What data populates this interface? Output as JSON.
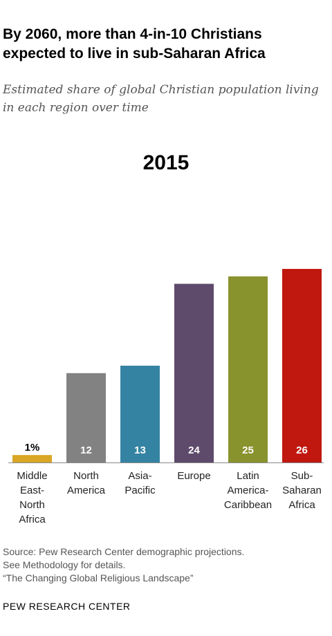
{
  "header": {
    "title": "By 2060, more than 4-in-10 Christians expected to live in sub-Saharan Africa",
    "subtitle": "Estimated share of global Christian population living in each region over time"
  },
  "chart_data": {
    "type": "bar",
    "title": "2015",
    "categories": [
      [
        "Middle",
        "East-",
        "North",
        "Africa"
      ],
      [
        "North",
        "America"
      ],
      [
        "Asia-",
        "Pacific"
      ],
      [
        "Europe"
      ],
      [
        "Latin",
        "America-",
        "Caribbean"
      ],
      [
        "Sub-",
        "Saharan",
        "Africa"
      ]
    ],
    "values": [
      1,
      12,
      13,
      24,
      25,
      26
    ],
    "value_labels": [
      "1%",
      "12",
      "13",
      "24",
      "25",
      "26"
    ],
    "colors": [
      "#D9A626",
      "#828282",
      "#3583A3",
      "#5E4A6B",
      "#88932E",
      "#C0180F"
    ],
    "ylim": [
      0,
      26
    ],
    "grid": false,
    "legend": "none"
  },
  "footer": {
    "source_lines": [
      "Source: Pew Research Center demographic projections.",
      "See Methodology for details.",
      "“The Changing Global Religious Landscape”"
    ],
    "brand": "PEW RESEARCH CENTER"
  }
}
